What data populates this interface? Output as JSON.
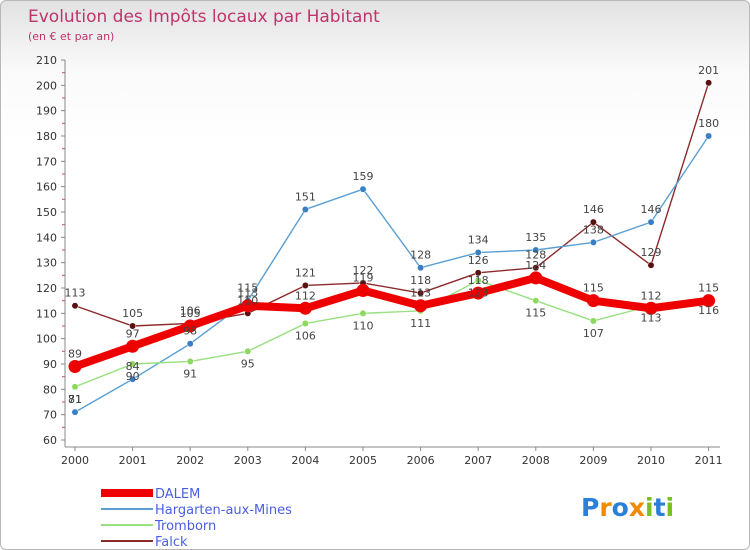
{
  "chart_data": {
    "type": "line",
    "title": "Evolution des Impôts locaux par Habitant",
    "subtitle": "(en € et par an)",
    "xlabel": "",
    "ylabel": "",
    "ylim": [
      60,
      210
    ],
    "y_ticks": [
      60,
      70,
      80,
      90,
      100,
      110,
      120,
      130,
      140,
      150,
      160,
      170,
      180,
      190,
      200,
      210
    ],
    "categories": [
      "2000",
      "2001",
      "2002",
      "2003",
      "2004",
      "2005",
      "2006",
      "2007",
      "2008",
      "2009",
      "2010",
      "2011"
    ],
    "legend_position": "bottom-left",
    "grid": false,
    "series": [
      {
        "name": "Falck",
        "color": "#8b2a2a",
        "marker": "#5a1010",
        "values": [
          113,
          105,
          106,
          110,
          121,
          122,
          118,
          126,
          128,
          146,
          129,
          201
        ]
      },
      {
        "name": "Hargarten-aux-Mines",
        "color": "#5a9fd4",
        "marker": "#3a7fc4",
        "values": [
          71,
          84,
          98,
          115,
          151,
          159,
          128,
          134,
          135,
          138,
          146,
          180
        ]
      },
      {
        "name": "Tromborn",
        "color": "#98e080",
        "marker": "#8cd860",
        "values": [
          81,
          90,
          91,
          95,
          106,
          110,
          111,
          123,
          115,
          107,
          113,
          116
        ]
      },
      {
        "name": "DALEM",
        "color": "#ee0000",
        "marker": "#ee0000",
        "values": [
          89,
          97,
          105,
          113,
          112,
          119,
          113,
          118,
          124,
          115,
          112,
          115
        ]
      }
    ],
    "legend": [
      "DALEM",
      "Hargarten-aux-Mines",
      "Tromborn",
      "Falck"
    ]
  },
  "brand": {
    "text": "Proxiti",
    "letters": [
      "P",
      "r",
      "o",
      "x",
      "i",
      "t",
      "i"
    ]
  }
}
